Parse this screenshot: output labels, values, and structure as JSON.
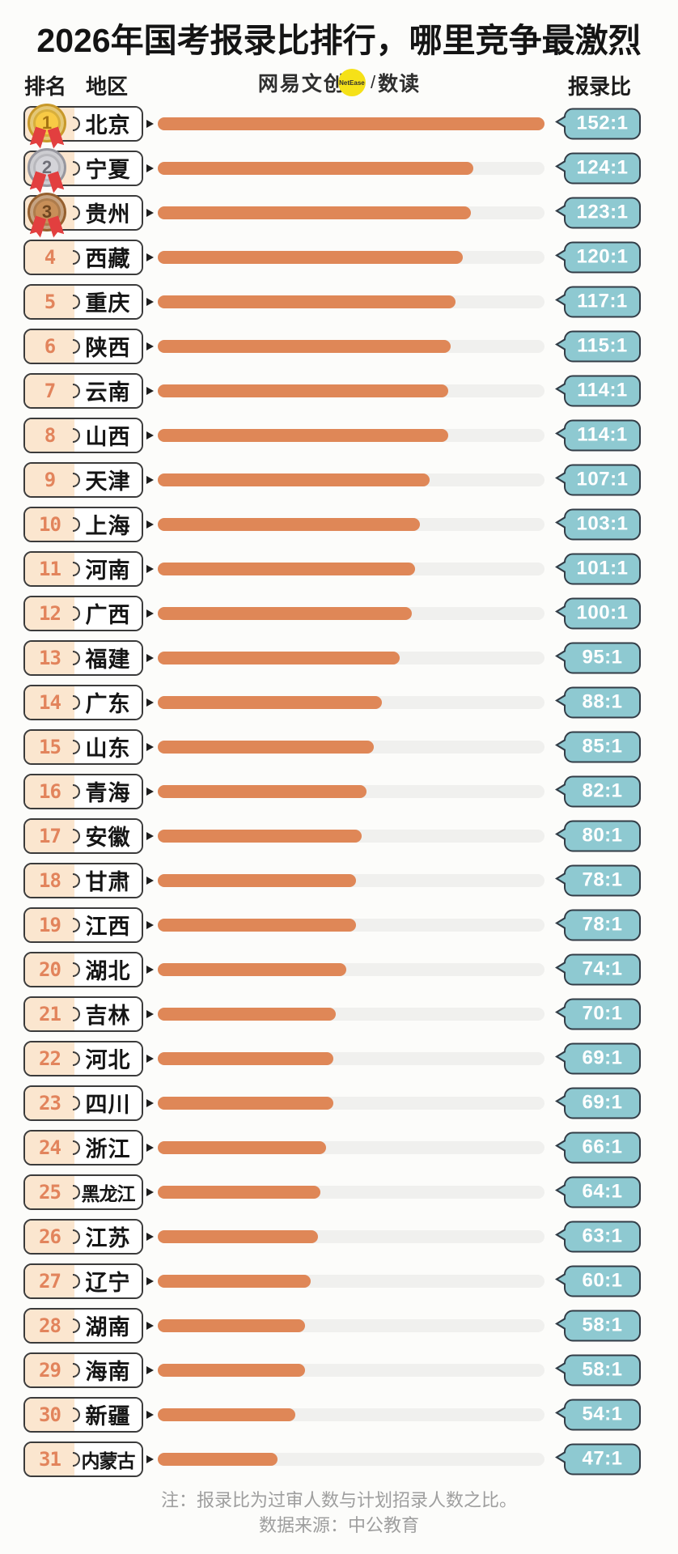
{
  "title": "2026年国考报录比排行，哪里竞争最激烈",
  "header": {
    "rank_col": "排名",
    "region_col": "地区",
    "ratio_col": "报录比"
  },
  "logo": {
    "brand": "网易文创",
    "badge": "NetEase",
    "separator": "/",
    "sub_brand": "数读"
  },
  "rows": [
    {
      "rank": 1,
      "region": "北京",
      "ratio": "152:1",
      "value": 152,
      "medal": "gold"
    },
    {
      "rank": 2,
      "region": "宁夏",
      "ratio": "124:1",
      "value": 124,
      "medal": "silver"
    },
    {
      "rank": 3,
      "region": "贵州",
      "ratio": "123:1",
      "value": 123,
      "medal": "bronze"
    },
    {
      "rank": 4,
      "region": "西藏",
      "ratio": "120:1",
      "value": 120,
      "medal": null
    },
    {
      "rank": 5,
      "region": "重庆",
      "ratio": "117:1",
      "value": 117,
      "medal": null
    },
    {
      "rank": 6,
      "region": "陕西",
      "ratio": "115:1",
      "value": 115,
      "medal": null
    },
    {
      "rank": 7,
      "region": "云南",
      "ratio": "114:1",
      "value": 114,
      "medal": null
    },
    {
      "rank": 8,
      "region": "山西",
      "ratio": "114:1",
      "value": 114,
      "medal": null
    },
    {
      "rank": 9,
      "region": "天津",
      "ratio": "107:1",
      "value": 107,
      "medal": null
    },
    {
      "rank": 10,
      "region": "上海",
      "ratio": "103:1",
      "value": 103,
      "medal": null
    },
    {
      "rank": 11,
      "region": "河南",
      "ratio": "101:1",
      "value": 101,
      "medal": null
    },
    {
      "rank": 12,
      "region": "广西",
      "ratio": "100:1",
      "value": 100,
      "medal": null
    },
    {
      "rank": 13,
      "region": "福建",
      "ratio": "95:1",
      "value": 95,
      "medal": null
    },
    {
      "rank": 14,
      "region": "广东",
      "ratio": "88:1",
      "value": 88,
      "medal": null
    },
    {
      "rank": 15,
      "region": "山东",
      "ratio": "85:1",
      "value": 85,
      "medal": null
    },
    {
      "rank": 16,
      "region": "青海",
      "ratio": "82:1",
      "value": 82,
      "medal": null
    },
    {
      "rank": 17,
      "region": "安徽",
      "ratio": "80:1",
      "value": 80,
      "medal": null
    },
    {
      "rank": 18,
      "region": "甘肃",
      "ratio": "78:1",
      "value": 78,
      "medal": null
    },
    {
      "rank": 19,
      "region": "江西",
      "ratio": "78:1",
      "value": 78,
      "medal": null
    },
    {
      "rank": 20,
      "region": "湖北",
      "ratio": "74:1",
      "value": 74,
      "medal": null
    },
    {
      "rank": 21,
      "region": "吉林",
      "ratio": "70:1",
      "value": 70,
      "medal": null
    },
    {
      "rank": 22,
      "region": "河北",
      "ratio": "69:1",
      "value": 69,
      "medal": null
    },
    {
      "rank": 23,
      "region": "四川",
      "ratio": "69:1",
      "value": 69,
      "medal": null
    },
    {
      "rank": 24,
      "region": "浙江",
      "ratio": "66:1",
      "value": 66,
      "medal": null
    },
    {
      "rank": 25,
      "region": "黑龙江",
      "ratio": "64:1",
      "value": 64,
      "medal": null
    },
    {
      "rank": 26,
      "region": "江苏",
      "ratio": "63:1",
      "value": 63,
      "medal": null
    },
    {
      "rank": 27,
      "region": "辽宁",
      "ratio": "60:1",
      "value": 60,
      "medal": null
    },
    {
      "rank": 28,
      "region": "湖南",
      "ratio": "58:1",
      "value": 58,
      "medal": null
    },
    {
      "rank": 29,
      "region": "海南",
      "ratio": "58:1",
      "value": 58,
      "medal": null
    },
    {
      "rank": 30,
      "region": "新疆",
      "ratio": "54:1",
      "value": 54,
      "medal": null
    },
    {
      "rank": 31,
      "region": "内蒙古",
      "ratio": "47:1",
      "value": 47,
      "medal": null
    }
  ],
  "footer": {
    "note": "注：报录比为过审人数与计划招录人数之比。",
    "source": "数据来源：中公教育"
  },
  "colors": {
    "page_bg": "#fcfcfa",
    "title_color": "#141414",
    "bar": "#df8757",
    "track": "#f0f0ee",
    "bubble": "#8ec9d1",
    "bubble_border": "#333d47",
    "box_border": "#3b3b3b",
    "rank_bg": "#fbe6cf",
    "rank_text": "#e2845c",
    "badge_yellow": "#f5e118",
    "note_gray": "#9e9e9e",
    "ribbon": "#e23f3f",
    "gold": "#f8ca45",
    "silver": "#d4d4d9",
    "bronze": "#c88f58"
  },
  "chart_data": {
    "type": "bar",
    "orientation": "horizontal",
    "title": "2026年国考报录比排行，哪里竞争最激烈",
    "categories": [
      "北京",
      "宁夏",
      "贵州",
      "西藏",
      "重庆",
      "陕西",
      "云南",
      "山西",
      "天津",
      "上海",
      "河南",
      "广西",
      "福建",
      "广东",
      "山东",
      "青海",
      "安徽",
      "甘肃",
      "江西",
      "湖北",
      "吉林",
      "河北",
      "四川",
      "浙江",
      "黑龙江",
      "江苏",
      "辽宁",
      "湖南",
      "海南",
      "新疆",
      "内蒙古"
    ],
    "values": [
      152,
      124,
      123,
      120,
      117,
      115,
      114,
      114,
      107,
      103,
      101,
      100,
      95,
      88,
      85,
      82,
      80,
      78,
      78,
      74,
      70,
      69,
      69,
      66,
      64,
      63,
      60,
      58,
      58,
      54,
      47
    ],
    "value_labels": [
      "152:1",
      "124:1",
      "123:1",
      "120:1",
      "117:1",
      "115:1",
      "114:1",
      "114:1",
      "107:1",
      "103:1",
      "101:1",
      "100:1",
      "95:1",
      "88:1",
      "85:1",
      "82:1",
      "80:1",
      "78:1",
      "78:1",
      "74:1",
      "70:1",
      "69:1",
      "69:1",
      "66:1",
      "64:1",
      "63:1",
      "60:1",
      "58:1",
      "58:1",
      "54:1",
      "47:1"
    ],
    "xlabel": "报录比",
    "ylabel": "地区",
    "xlim": [
      0,
      152
    ],
    "grid": false,
    "legend": false,
    "note": "注：报录比为过审人数与计划招录人数之比。",
    "source": "数据来源：中公教育"
  }
}
